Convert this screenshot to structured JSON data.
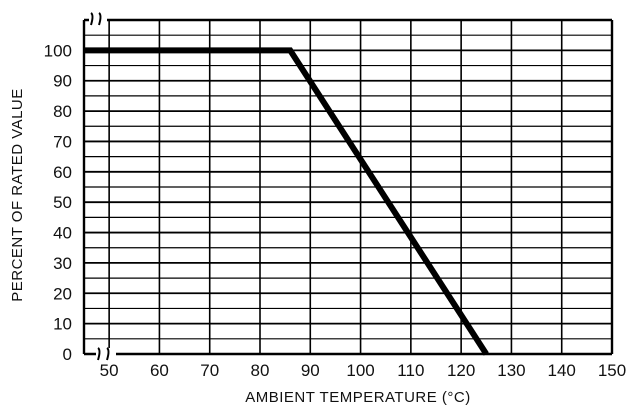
{
  "chart_data": {
    "type": "line",
    "title": "",
    "xlabel": "AMBIENT TEMPERATURE (°C)",
    "ylabel": "PERCENT OF RATED VALUE",
    "x_ticks": [
      50,
      60,
      70,
      80,
      90,
      100,
      110,
      120,
      130,
      140,
      150
    ],
    "y_ticks": [
      0,
      10,
      20,
      30,
      40,
      50,
      60,
      70,
      80,
      90,
      100
    ],
    "x_axis_break": true,
    "y_axis_break": true,
    "xlim": [
      45,
      150
    ],
    "ylim": [
      0,
      110
    ],
    "grid": true,
    "legend": "none",
    "series": [
      {
        "x": [
          45,
          86,
          125
        ],
        "y": [
          100,
          100,
          0
        ]
      }
    ],
    "colors": {
      "line": "#000000",
      "grid": "#000000",
      "background": "#ffffff"
    }
  }
}
